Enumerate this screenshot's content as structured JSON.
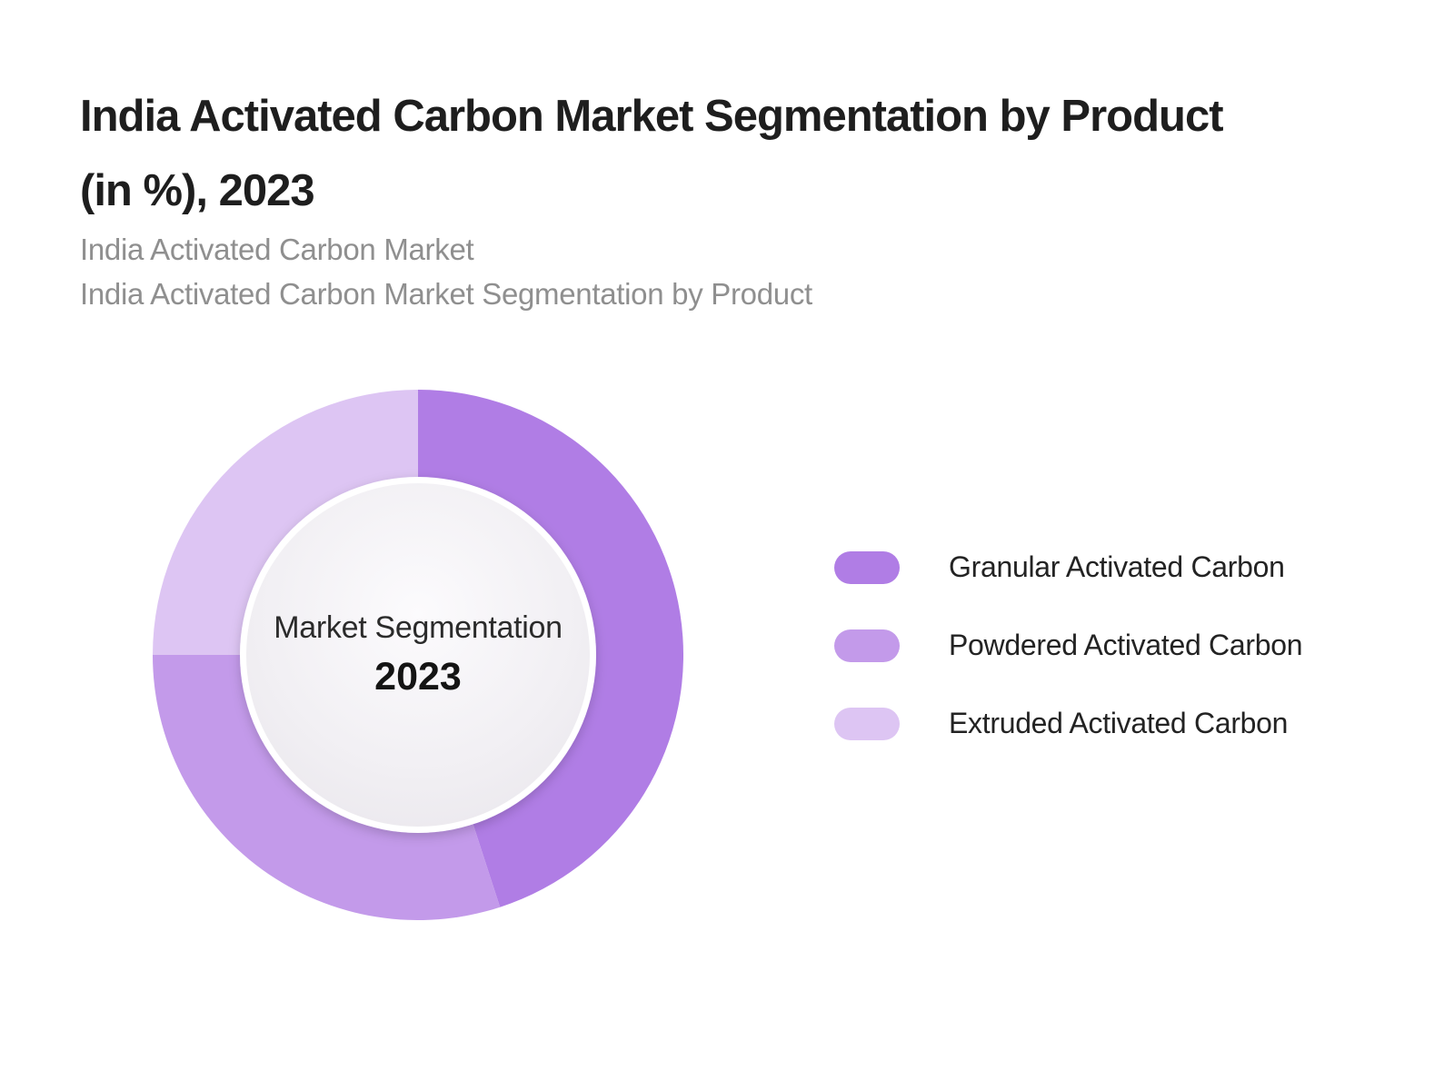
{
  "page": {
    "background": "#ffffff",
    "title_lines": [
      "India Activated Carbon Market Segmentation by Product",
      "(in %), 2023"
    ],
    "subtitle_lines": [
      "India Activated Carbon Market",
      "India Activated Carbon Market Segmentation by Product"
    ]
  },
  "chart_data": {
    "type": "pie",
    "subtype": "donut",
    "title": "India Activated Carbon Market Segmentation by Product (in %), 2023",
    "unit": "%",
    "categories": [
      "Granular Activated Carbon",
      "Powdered Activated Carbon",
      "Extruded Activated Carbon"
    ],
    "values": [
      45,
      30,
      25
    ],
    "colors": [
      "#b07de5",
      "#c39aea",
      "#ddc5f3"
    ],
    "start_angle_deg": 0,
    "direction": "clockwise",
    "legend_position": "right",
    "center_label": "Market Segmentation",
    "center_year": "2023"
  },
  "legend": {
    "items": [
      {
        "label": "Granular Activated Carbon",
        "color": "#b07de5"
      },
      {
        "label": "Powdered Activated Carbon",
        "color": "#c39aea"
      },
      {
        "label": "Extruded Activated Carbon",
        "color": "#ddc5f3"
      }
    ]
  }
}
